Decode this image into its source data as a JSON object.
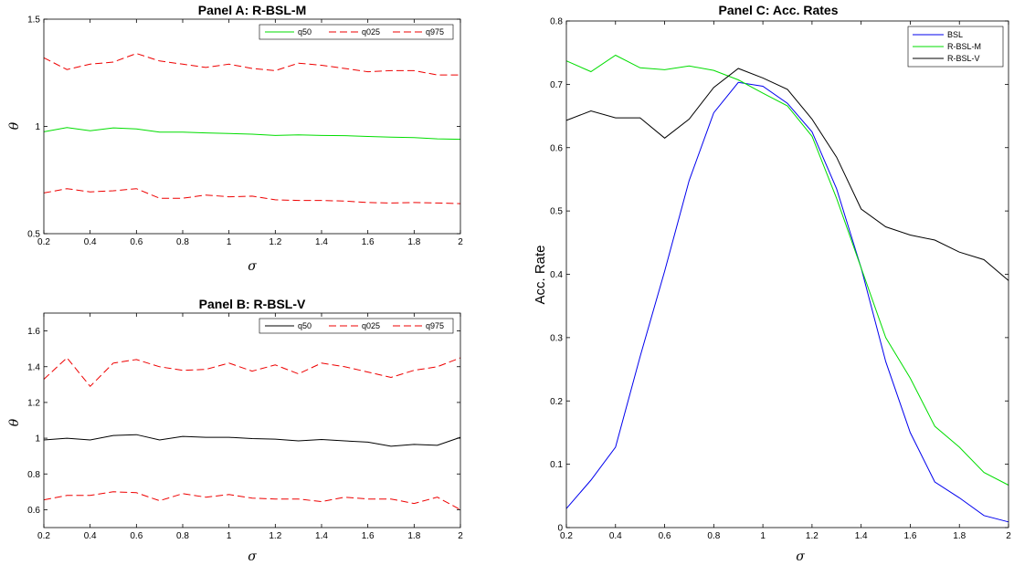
{
  "chart_data": [
    {
      "id": "A",
      "type": "line",
      "title": "Panel A: R-BSL-M",
      "xlabel": "σ",
      "ylabel": "θ",
      "xlim": [
        0.2,
        2
      ],
      "ylim": [
        0.5,
        1.5
      ],
      "xticks": [
        0.2,
        0.4,
        0.6,
        0.8,
        1,
        1.2,
        1.4,
        1.6,
        1.8,
        2
      ],
      "yticks": [
        0.5,
        1,
        1.5
      ],
      "legend_position": "top-right",
      "legend_layout": "horizontal",
      "x": [
        0.2,
        0.3,
        0.4,
        0.5,
        0.6,
        0.7,
        0.8,
        0.9,
        1.0,
        1.1,
        1.2,
        1.3,
        1.4,
        1.5,
        1.6,
        1.7,
        1.8,
        1.9,
        2.0
      ],
      "series": [
        {
          "name": "q50",
          "color": "#00dd00",
          "dash": "solid",
          "values": [
            0.975,
            0.995,
            0.98,
            0.993,
            0.988,
            0.973,
            0.973,
            0.97,
            0.967,
            0.964,
            0.958,
            0.961,
            0.958,
            0.957,
            0.953,
            0.95,
            0.948,
            0.942,
            0.94
          ]
        },
        {
          "name": "q025",
          "color": "#ee0000",
          "dash": "dashed",
          "values": [
            0.69,
            0.71,
            0.695,
            0.7,
            0.71,
            0.665,
            0.665,
            0.68,
            0.672,
            0.675,
            0.658,
            0.655,
            0.655,
            0.652,
            0.645,
            0.643,
            0.645,
            0.643,
            0.64
          ]
        },
        {
          "name": "q975",
          "color": "#ee0000",
          "dash": "dashed",
          "values": [
            1.32,
            1.265,
            1.29,
            1.3,
            1.34,
            1.305,
            1.29,
            1.275,
            1.29,
            1.27,
            1.26,
            1.295,
            1.285,
            1.27,
            1.255,
            1.26,
            1.26,
            1.24,
            1.24
          ]
        }
      ]
    },
    {
      "id": "B",
      "type": "line",
      "title": "Panel B: R-BSL-V",
      "xlabel": "σ",
      "ylabel": "θ",
      "xlim": [
        0.2,
        2
      ],
      "ylim": [
        0.5,
        1.7
      ],
      "xticks": [
        0.2,
        0.4,
        0.6,
        0.8,
        1,
        1.2,
        1.4,
        1.6,
        1.8,
        2
      ],
      "yticks": [
        0.6,
        0.8,
        1,
        1.2,
        1.4,
        1.6
      ],
      "legend_position": "top-right",
      "legend_layout": "horizontal",
      "x": [
        0.2,
        0.3,
        0.4,
        0.5,
        0.6,
        0.7,
        0.8,
        0.9,
        1.0,
        1.1,
        1.2,
        1.3,
        1.4,
        1.5,
        1.6,
        1.7,
        1.8,
        1.9,
        2.0
      ],
      "series": [
        {
          "name": "q50",
          "color": "#000000",
          "dash": "solid",
          "values": [
            0.99,
            1.0,
            0.99,
            1.015,
            1.02,
            0.99,
            1.01,
            1.005,
            1.005,
            0.998,
            0.995,
            0.985,
            0.993,
            0.985,
            0.978,
            0.955,
            0.965,
            0.96,
            1.005
          ]
        },
        {
          "name": "q025",
          "color": "#ee0000",
          "dash": "dashed",
          "values": [
            0.655,
            0.68,
            0.68,
            0.7,
            0.695,
            0.65,
            0.69,
            0.67,
            0.685,
            0.665,
            0.66,
            0.66,
            0.645,
            0.67,
            0.66,
            0.66,
            0.635,
            0.67,
            0.6
          ]
        },
        {
          "name": "q975",
          "color": "#ee0000",
          "dash": "dashed",
          "values": [
            1.33,
            1.45,
            1.29,
            1.42,
            1.44,
            1.4,
            1.38,
            1.385,
            1.42,
            1.375,
            1.41,
            1.36,
            1.42,
            1.4,
            1.37,
            1.34,
            1.38,
            1.4,
            1.45
          ]
        }
      ]
    },
    {
      "id": "C",
      "type": "line",
      "title": "Panel C: Acc. Rates",
      "xlabel": "σ",
      "ylabel": "Acc. Rate",
      "xlim": [
        0.2,
        2
      ],
      "ylim": [
        0,
        0.8
      ],
      "xticks": [
        0.2,
        0.4,
        0.6,
        0.8,
        1,
        1.2,
        1.4,
        1.6,
        1.8,
        2
      ],
      "yticks": [
        0,
        0.1,
        0.2,
        0.3,
        0.4,
        0.5,
        0.6,
        0.7,
        0.8
      ],
      "legend_position": "top-right",
      "legend_layout": "vertical",
      "x": [
        0.2,
        0.3,
        0.4,
        0.5,
        0.6,
        0.7,
        0.8,
        0.9,
        1.0,
        1.1,
        1.2,
        1.3,
        1.4,
        1.5,
        1.6,
        1.7,
        1.8,
        1.9,
        2.0
      ],
      "series": [
        {
          "name": "BSL",
          "color": "#0000ee",
          "dash": "solid",
          "values": [
            0.03,
            0.075,
            0.127,
            0.27,
            0.405,
            0.548,
            0.655,
            0.703,
            0.697,
            0.67,
            0.625,
            0.535,
            0.41,
            0.262,
            0.15,
            0.072,
            0.047,
            0.019,
            0.009
          ]
        },
        {
          "name": "R-BSL-M",
          "color": "#00dd00",
          "dash": "solid",
          "values": [
            0.737,
            0.72,
            0.746,
            0.726,
            0.723,
            0.729,
            0.722,
            0.707,
            0.686,
            0.666,
            0.618,
            0.52,
            0.41,
            0.3,
            0.236,
            0.16,
            0.127,
            0.087,
            0.067
          ]
        },
        {
          "name": "R-BSL-V",
          "color": "#000000",
          "dash": "solid",
          "values": [
            0.643,
            0.658,
            0.647,
            0.647,
            0.615,
            0.645,
            0.695,
            0.725,
            0.71,
            0.692,
            0.645,
            0.585,
            0.503,
            0.475,
            0.462,
            0.454,
            0.435,
            0.423,
            0.39
          ]
        }
      ]
    }
  ]
}
